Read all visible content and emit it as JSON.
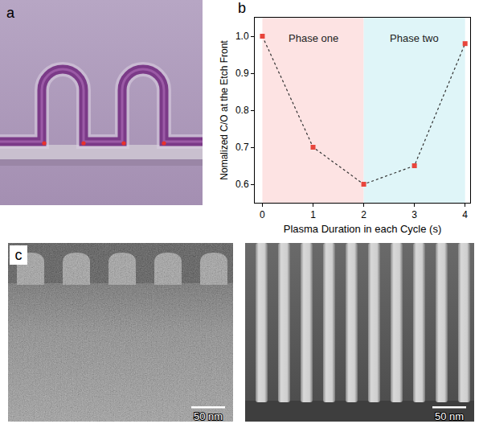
{
  "panels": {
    "a": {
      "label": "a"
    },
    "b": {
      "label": "b"
    },
    "c": {
      "label": "c",
      "images": [
        {
          "scale_bar": "50 nm"
        },
        {
          "scale_bar": "50 nm"
        }
      ]
    }
  },
  "chart_data": {
    "type": "line",
    "x": [
      0,
      1,
      2,
      3,
      4
    ],
    "values": [
      1.0,
      0.7,
      0.6,
      0.65,
      0.98
    ],
    "color": "#e8453c",
    "marker": "square",
    "line_style": "dot",
    "xlabel": "Plasma Duration in each Cycle (s)",
    "ylabel": "Nomalized C/O at the Etch Front",
    "xlim": [
      -0.15,
      4.1
    ],
    "xticks": [
      0,
      1,
      2,
      3,
      4
    ],
    "ylim": [
      0.55,
      1.05
    ],
    "yticks": [
      0.6,
      0.7,
      0.8,
      0.9,
      {
        "value": 1,
        "label": "1.0"
      }
    ],
    "grid": false,
    "regions": [
      {
        "x0": 0,
        "x1": 2,
        "label": "Phase one",
        "color": "#fde3e3"
      },
      {
        "x0": 2,
        "x1": 4,
        "label": "Phase two",
        "color": "#dff5f8"
      }
    ]
  }
}
